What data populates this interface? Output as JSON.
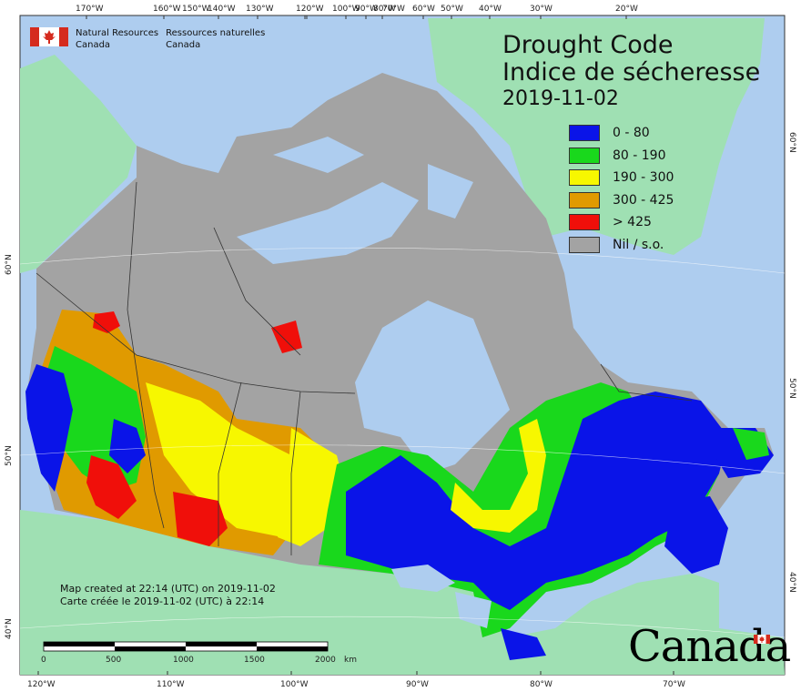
{
  "title_en": "Drought Code",
  "title_fr": "Indice de sécheresse",
  "date": "2019-11-02",
  "legend": [
    {
      "label": "0 - 80",
      "color": "#0a14e8"
    },
    {
      "label": "80 - 190",
      "color": "#19d81c"
    },
    {
      "label": "190 - 300",
      "color": "#f7f700"
    },
    {
      "label": "300 - 425",
      "color": "#e09a00"
    },
    {
      "label": "> 425",
      "color": "#f00f0a"
    },
    {
      "label": "Nil / s.o.",
      "color": "#a3a3a3"
    }
  ],
  "agency": {
    "en_line1": "Natural Resources",
    "en_line2": "Canada",
    "fr_line1": "Ressources naturelles",
    "fr_line2": "Canada",
    "flag_icon": "canada-flag-icon"
  },
  "credit": {
    "line1": "Map created at 22:14 (UTC) on 2019-11-02",
    "line2": "Carte créée le 2019-11-02 (UTC) à 22:14"
  },
  "scale_bar": {
    "labels": [
      "0",
      "500",
      "1000",
      "1500",
      "2000"
    ],
    "unit": "km"
  },
  "top_ticks": [
    "170°W",
    "160°W",
    "150°W",
    "140°W",
    "130°W",
    "120°W",
    "100°W",
    "90°W",
    "80°W",
    "70°W",
    "60°W",
    "50°W",
    "40°W",
    "30°W",
    "20°W"
  ],
  "bottom_ticks": [
    "120°W",
    "110°W",
    "100°W",
    "90°W",
    "80°W",
    "70°W"
  ],
  "left_ticks": [
    "60°N",
    "50°N",
    "40°N"
  ],
  "right_ticks": [
    "60°N",
    "50°N",
    "40°N"
  ],
  "wordmark": "Canada",
  "colors": {
    "ocean": "#aecdef",
    "foreign_land": "#9fe0b3",
    "nil_land": "#a3a3a3",
    "border": "#333333"
  }
}
